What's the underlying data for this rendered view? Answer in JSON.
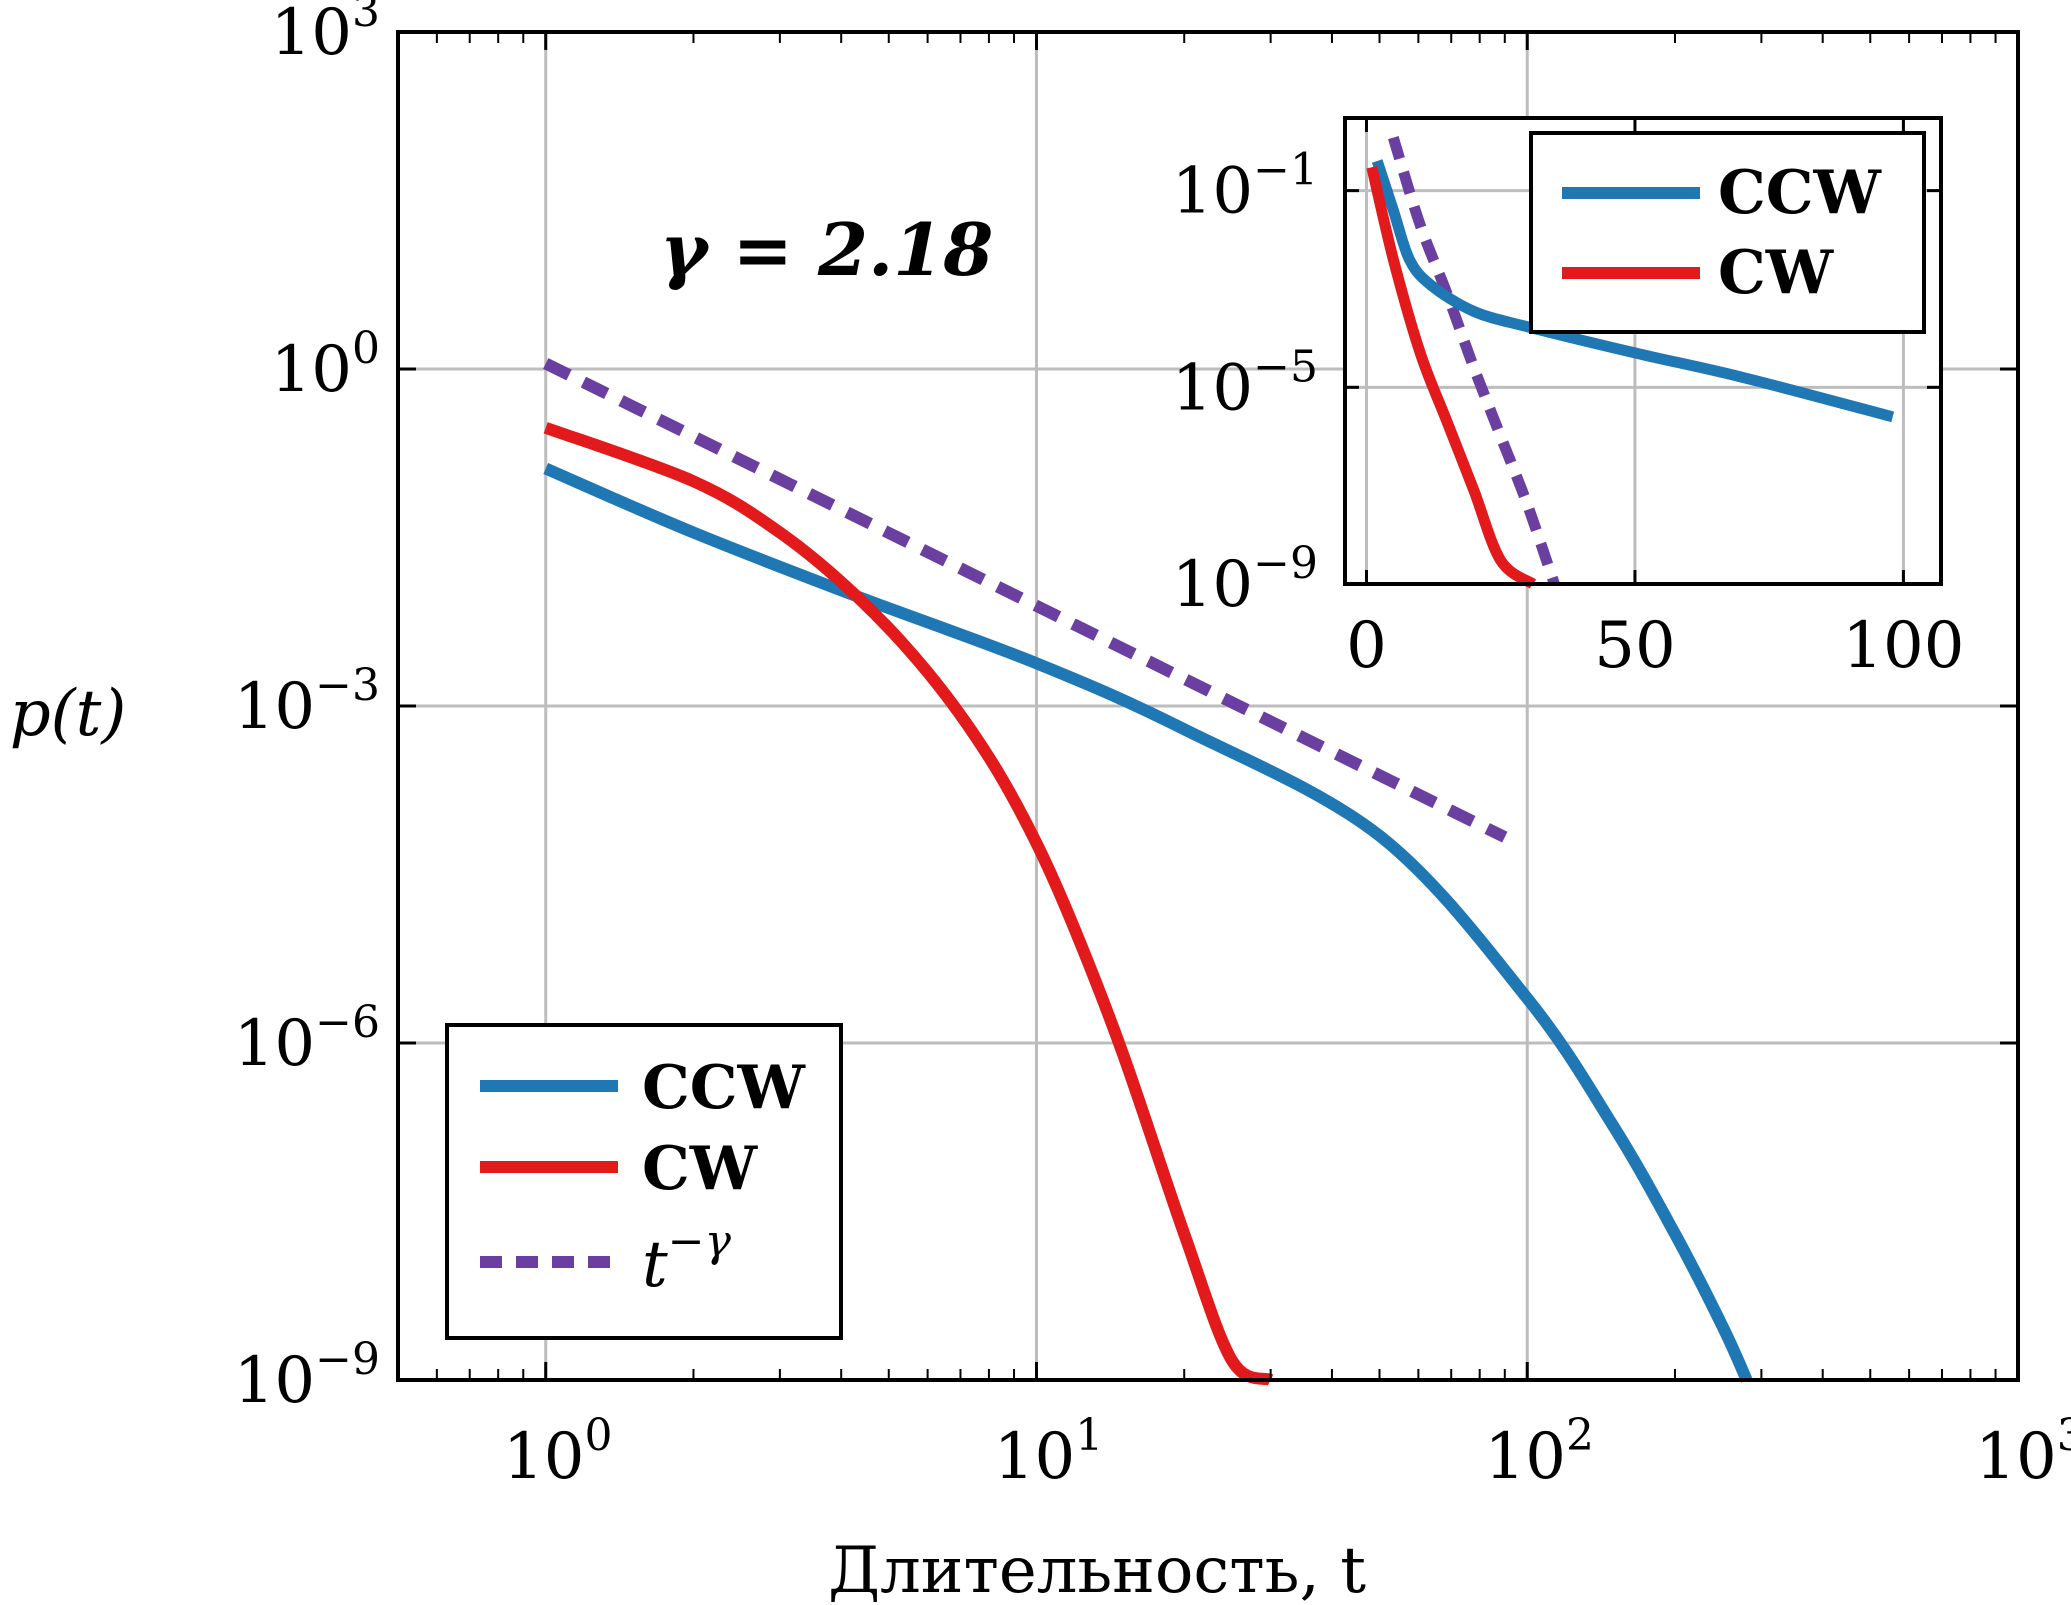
{
  "chart_data": [
    {
      "type": "line",
      "xlabel": "Длительность, t",
      "ylabel": "p(t)",
      "xscale": "log",
      "yscale": "log",
      "xlim": [
        0.5,
        1000
      ],
      "ylim": [
        1e-09,
        1000
      ],
      "xticks": [
        1,
        10,
        100,
        1000
      ],
      "yticks": [
        1e-09,
        1e-06,
        0.001,
        1,
        1000
      ],
      "xtick_labels": [
        {
          "base": "10",
          "exp": "0"
        },
        {
          "base": "10",
          "exp": "1"
        },
        {
          "base": "10",
          "exp": "2"
        },
        {
          "base": "10",
          "exp": "3"
        }
      ],
      "ytick_labels": [
        {
          "base": "10",
          "exp": "−9"
        },
        {
          "base": "10",
          "exp": "−6"
        },
        {
          "base": "10",
          "exp": "−3"
        },
        {
          "base": "10",
          "exp": "0"
        },
        {
          "base": "10",
          "exp": "3"
        }
      ],
      "grid": true,
      "annotation": "γ = 2.18",
      "annotation_color": "#6b3fa0",
      "legend": {
        "position": "bottom-left",
        "entries": [
          {
            "label": "CCW",
            "color": "#1f77b4",
            "style": "solid"
          },
          {
            "label": "CW",
            "color": "#e31a1c",
            "style": "solid"
          },
          {
            "label": "t",
            "label_exp": "−γ",
            "color": "#6b3fa0",
            "style": "dashed"
          }
        ]
      },
      "series": [
        {
          "name": "CCW",
          "color": "#1f77b4",
          "style": "solid",
          "x": [
            1,
            2,
            4.3,
            10,
            20,
            50,
            100,
            150,
            200,
            250,
            280
          ],
          "y": [
            0.13,
            0.035,
            0.0095,
            0.0024,
            0.00062,
            7e-05,
            2.5e-06,
            1.8e-07,
            2e-08,
            3e-09,
            1e-09
          ]
        },
        {
          "name": "CW",
          "color": "#e31a1c",
          "style": "solid",
          "x": [
            1,
            2,
            3,
            4.3,
            6,
            8,
            10,
            12,
            15,
            20,
            25,
            30
          ],
          "y": [
            0.3,
            0.1,
            0.035,
            0.0095,
            0.002,
            0.00035,
            6e-05,
            1e-05,
            8e-07,
            2e-08,
            1.5e-09,
            1e-09
          ]
        },
        {
          "name": "t^−γ",
          "color": "#6b3fa0",
          "style": "dashed",
          "x": [
            1,
            90
          ],
          "y": [
            1.12,
            6.8e-05
          ]
        }
      ]
    },
    {
      "type": "line",
      "inset": true,
      "xscale": "linear",
      "yscale": "log",
      "xlim": [
        -4,
        107
      ],
      "ylim": [
        1e-09,
        3
      ],
      "xticks": [
        0,
        50,
        100
      ],
      "xtick_labels": [
        "0",
        "50",
        "100"
      ],
      "yticks": [
        1e-09,
        1e-05,
        0.1
      ],
      "ytick_labels": [
        {
          "base": "10",
          "exp": "−9"
        },
        {
          "base": "10",
          "exp": "−5"
        },
        {
          "base": "10",
          "exp": "−1"
        }
      ],
      "grid": true,
      "legend": {
        "position": "top-right",
        "entries": [
          {
            "label": "CCW",
            "color": "#1f77b4",
            "style": "solid"
          },
          {
            "label": "CW",
            "color": "#e31a1c",
            "style": "solid"
          }
        ]
      },
      "series": [
        {
          "name": "CCW",
          "color": "#1f77b4",
          "style": "solid",
          "x": [
            2,
            5,
            8,
            12,
            20,
            30,
            50,
            70,
            98
          ],
          "y": [
            0.4,
            0.04,
            0.004,
            0.0012,
            0.00035,
            0.00017,
            5e-05,
            1.6e-05,
            2.5e-06
          ]
        },
        {
          "name": "CW",
          "color": "#e31a1c",
          "style": "solid",
          "x": [
            1,
            5,
            10,
            15,
            20,
            25,
            31
          ],
          "y": [
            0.3,
            0.004,
            5e-05,
            2e-06,
            8e-08,
            3e-09,
            1e-09
          ]
        },
        {
          "name": "t^−γ",
          "color": "#6b3fa0",
          "style": "dashed",
          "x": [
            5,
            10,
            15,
            20,
            25,
            30,
            35
          ],
          "y": [
            1.2,
            0.02,
            0.0008,
            2.5e-05,
            1e-06,
            4e-08,
            1e-09
          ]
        }
      ]
    }
  ]
}
